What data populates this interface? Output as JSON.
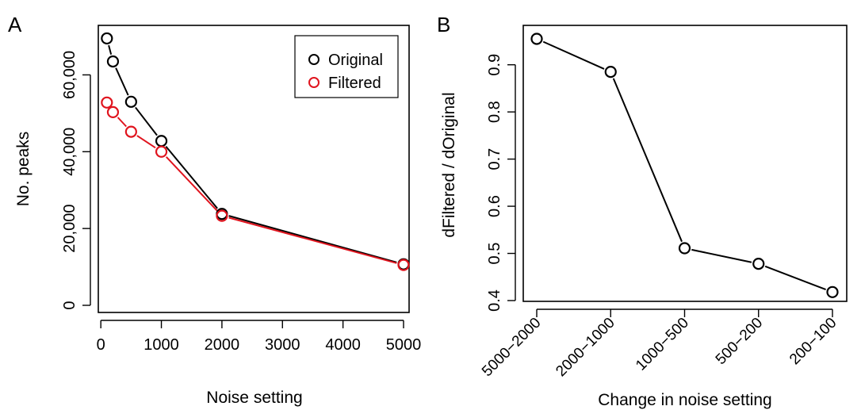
{
  "chart_data": [
    {
      "panel_label": "A",
      "type": "line",
      "title": "",
      "xlabel": "Noise setting",
      "ylabel": "No. peaks",
      "xlim": [
        50,
        5000
      ],
      "ylim": [
        0,
        70000
      ],
      "xticks": [
        0,
        1000,
        2000,
        3000,
        4000,
        5000
      ],
      "xtick_labels": [
        "0",
        "1000",
        "2000",
        "3000",
        "4000",
        "5000"
      ],
      "yticks": [
        0,
        20000,
        40000,
        60000
      ],
      "ytick_labels": [
        "0",
        "20,000",
        "40,000",
        "60,000"
      ],
      "x": [
        100,
        200,
        500,
        1000,
        2000,
        5000
      ],
      "series": [
        {
          "name": "Original",
          "color": "#000000",
          "values": [
            69500,
            63500,
            53000,
            42800,
            23800,
            10700
          ]
        },
        {
          "name": "Filtered",
          "color": "#e0141e",
          "values": [
            52800,
            50300,
            45200,
            40000,
            23300,
            10500
          ]
        }
      ],
      "legend_position": "top-right",
      "grid": false
    },
    {
      "panel_label": "B",
      "type": "line",
      "title": "",
      "xlabel": "Change in noise setting",
      "ylabel": "dFiltered / dOriginal",
      "categories": [
        "5000−2000",
        "2000−1000",
        "1000−500",
        "500−200",
        "200−100"
      ],
      "values": [
        0.955,
        0.885,
        0.511,
        0.478,
        0.418
      ],
      "ylim": [
        0.4,
        0.96
      ],
      "yticks": [
        0.4,
        0.5,
        0.6,
        0.7,
        0.8,
        0.9
      ],
      "ytick_labels": [
        "0.4",
        "0.5",
        "0.6",
        "0.7",
        "0.8",
        "0.9"
      ],
      "color": "#000000",
      "grid": false
    }
  ]
}
